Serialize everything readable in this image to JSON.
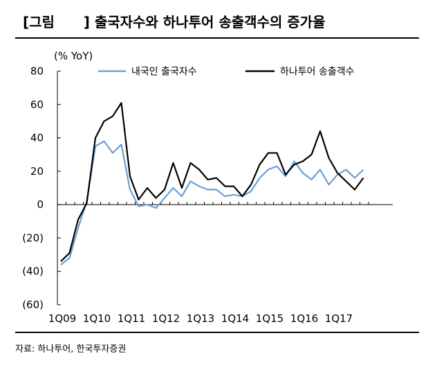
{
  "title": "[그림      ] 출국자수와 하나투어 송출객수의 증가율",
  "source": "자료: 하나투어, 한국투자증권",
  "chart_data": {
    "type": "line",
    "unit_label": "(% YoY)",
    "ylim": [
      -60,
      80
    ],
    "y_ticks": [
      80,
      60,
      40,
      20,
      0,
      -20,
      -40,
      -60
    ],
    "y_tick_labels": [
      "80",
      "60",
      "40",
      "20",
      "0",
      "(20)",
      "(40)",
      "(60)"
    ],
    "x_tick_labels": [
      "1Q09",
      "1Q10",
      "1Q11",
      "1Q12",
      "1Q13",
      "1Q14",
      "1Q15",
      "1Q16",
      "1Q17"
    ],
    "x": [
      "1Q09",
      "2Q09",
      "3Q09",
      "4Q09",
      "1Q10",
      "2Q10",
      "3Q10",
      "4Q10",
      "1Q11",
      "2Q11",
      "3Q11",
      "4Q11",
      "1Q12",
      "2Q12",
      "3Q12",
      "4Q12",
      "1Q13",
      "2Q13",
      "3Q13",
      "4Q13",
      "1Q14",
      "2Q14",
      "3Q14",
      "4Q14",
      "1Q15",
      "2Q15",
      "3Q15",
      "4Q15",
      "1Q16",
      "2Q16",
      "3Q16",
      "4Q16",
      "1Q17",
      "2Q17",
      "3Q17",
      "4Q17"
    ],
    "legend_position": "top",
    "grid": false,
    "series": [
      {
        "name": "내국인 출국자수",
        "color": "#6a9fd4",
        "values": [
          -36,
          -32,
          -14,
          2,
          35,
          38,
          31,
          36,
          9,
          -1,
          0,
          -2,
          4,
          10,
          5,
          14,
          11,
          9,
          9,
          5,
          6,
          5,
          8,
          16,
          21,
          23,
          17,
          26,
          19,
          15,
          21,
          12,
          18,
          21,
          16,
          21
        ]
      },
      {
        "name": "하나투어 송출객수",
        "color": "#000000",
        "values": [
          -34,
          -29,
          -9,
          1,
          40,
          50,
          53,
          61,
          17,
          3,
          10,
          4,
          9,
          25,
          10,
          25,
          21,
          15,
          16,
          11,
          11,
          5,
          12,
          24,
          31,
          31,
          18,
          24,
          26,
          30,
          44,
          28,
          19,
          14,
          9,
          16
        ]
      }
    ]
  }
}
